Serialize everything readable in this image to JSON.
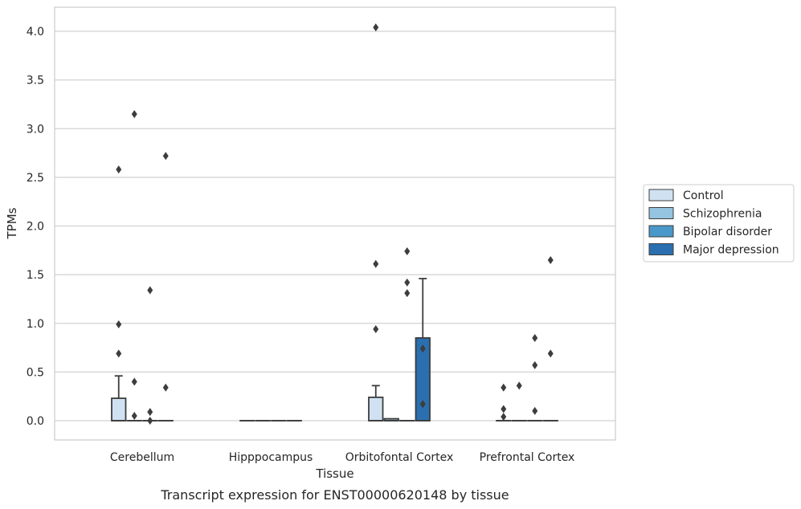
{
  "chart_data": {
    "type": "box",
    "caption": "Transcript expression for ENST00000620148 by tissue",
    "xlabel": "Tissue",
    "ylabel": "TPMs",
    "ylim": [
      -0.2,
      4.25
    ],
    "yticks": [
      0.0,
      0.5,
      1.0,
      1.5,
      2.0,
      2.5,
      3.0,
      3.5,
      4.0
    ],
    "ytick_labels": [
      "0.0",
      "0.5",
      "1.0",
      "1.5",
      "2.0",
      "2.5",
      "3.0",
      "3.5",
      "4.0"
    ],
    "grid": true,
    "legend_position": "right",
    "categories": [
      "Cerebellum",
      "Hipppocampus",
      "Orbitofontal Cortex",
      "Prefrontal Cortex"
    ],
    "series": [
      {
        "name": "Control",
        "color": "#d0e1f2",
        "boxes": [
          {
            "q1": 0.0,
            "median": 0.0,
            "q3": 0.23,
            "whisker_low": 0.0,
            "whisker_high": 0.46,
            "outliers": [
              0.69,
              0.99,
              2.58
            ]
          },
          {
            "q1": 0.0,
            "median": 0.0,
            "q3": 0.0,
            "whisker_low": 0.0,
            "whisker_high": 0.0,
            "outliers": []
          },
          {
            "q1": 0.0,
            "median": 0.0,
            "q3": 0.24,
            "whisker_low": 0.0,
            "whisker_high": 0.36,
            "outliers": [
              0.94,
              1.61,
              4.04
            ]
          },
          {
            "q1": 0.0,
            "median": 0.0,
            "q3": 0.0,
            "whisker_low": 0.0,
            "whisker_high": 0.0,
            "outliers": [
              0.04,
              0.12,
              0.34
            ]
          }
        ]
      },
      {
        "name": "Schizophrenia",
        "color": "#94c4df",
        "boxes": [
          {
            "q1": 0.0,
            "median": 0.0,
            "q3": 0.0,
            "whisker_low": 0.0,
            "whisker_high": 0.0,
            "outliers": [
              0.05,
              0.4,
              3.15
            ]
          },
          {
            "q1": 0.0,
            "median": 0.0,
            "q3": 0.0,
            "whisker_low": 0.0,
            "whisker_high": 0.0,
            "outliers": []
          },
          {
            "q1": 0.0,
            "median": 0.0,
            "q3": 0.02,
            "whisker_low": 0.0,
            "whisker_high": 0.02,
            "outliers": []
          },
          {
            "q1": 0.0,
            "median": 0.0,
            "q3": 0.0,
            "whisker_low": 0.0,
            "whisker_high": 0.0,
            "outliers": [
              0.36
            ]
          }
        ]
      },
      {
        "name": "Bipolar disorder",
        "color": "#4a98c9",
        "boxes": [
          {
            "q1": 0.0,
            "median": 0.0,
            "q3": 0.0,
            "whisker_low": 0.0,
            "whisker_high": 0.0,
            "outliers": [
              0.0,
              0.09,
              1.34
            ]
          },
          {
            "q1": 0.0,
            "median": 0.0,
            "q3": 0.0,
            "whisker_low": 0.0,
            "whisker_high": 0.0,
            "outliers": []
          },
          {
            "q1": 0.0,
            "median": 0.0,
            "q3": 0.0,
            "whisker_low": 0.0,
            "whisker_high": 0.0,
            "outliers": [
              1.31,
              1.42,
              1.74
            ]
          },
          {
            "q1": 0.0,
            "median": 0.0,
            "q3": 0.0,
            "whisker_low": 0.0,
            "whisker_high": 0.0,
            "outliers": [
              0.1,
              0.57,
              0.85
            ]
          }
        ]
      },
      {
        "name": "Major depression",
        "color": "#2a6fb0",
        "boxes": [
          {
            "q1": 0.0,
            "median": 0.0,
            "q3": 0.0,
            "whisker_low": 0.0,
            "whisker_high": 0.0,
            "outliers": [
              0.34,
              2.72
            ]
          },
          {
            "q1": 0.0,
            "median": 0.0,
            "q3": 0.0,
            "whisker_low": 0.0,
            "whisker_high": 0.0,
            "outliers": []
          },
          {
            "q1": 0.0,
            "median": 0.0,
            "q3": 0.85,
            "whisker_low": 0.0,
            "whisker_high": 1.46,
            "outliers": [
              0.17,
              0.74
            ]
          },
          {
            "q1": 0.0,
            "median": 0.0,
            "q3": 0.0,
            "whisker_low": 0.0,
            "whisker_high": 0.0,
            "outliers": [
              0.69,
              1.65
            ]
          }
        ]
      }
    ]
  }
}
